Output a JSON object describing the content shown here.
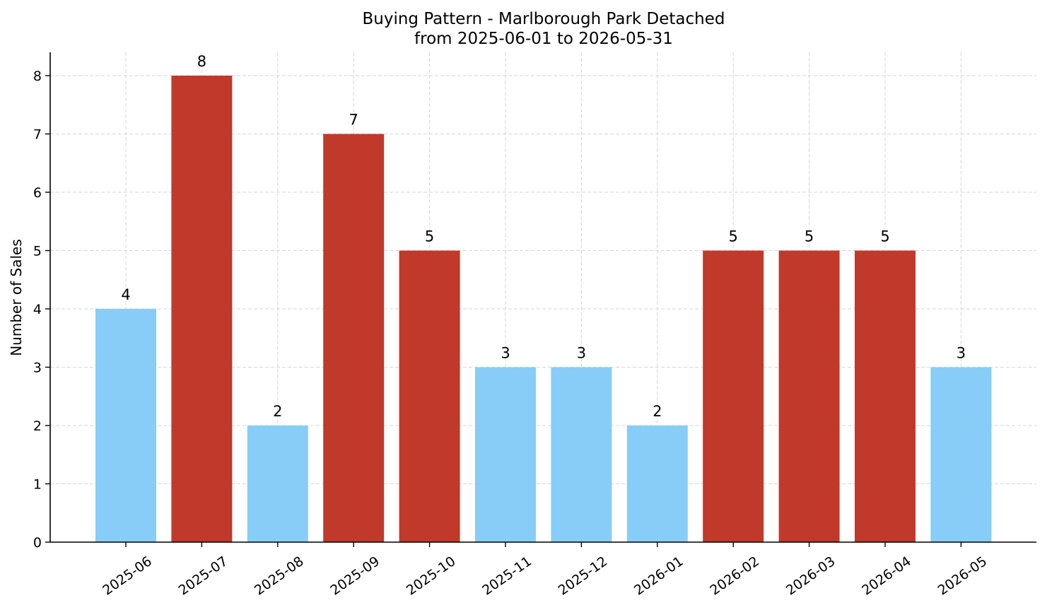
{
  "chart_data": {
    "type": "bar",
    "title": "Buying Pattern - Marlborough Park Detached",
    "subtitle": "from 2025-06-01 to 2026-05-31",
    "xlabel": "",
    "ylabel": "Number of Sales",
    "categories": [
      "2025-06",
      "2025-07",
      "2025-08",
      "2025-09",
      "2025-10",
      "2025-11",
      "2025-12",
      "2026-01",
      "2026-02",
      "2026-03",
      "2026-04",
      "2026-05"
    ],
    "values": [
      4,
      8,
      2,
      7,
      5,
      3,
      3,
      2,
      5,
      5,
      5,
      3
    ],
    "highlight": [
      false,
      true,
      false,
      true,
      true,
      false,
      false,
      false,
      true,
      true,
      true,
      false
    ],
    "colors": {
      "normal": "#87cdf8",
      "highlight": "#c0392b"
    },
    "ylim": [
      0,
      8.4
    ],
    "yticks": [
      0,
      1,
      2,
      3,
      4,
      5,
      6,
      7,
      8
    ],
    "grid": true,
    "legend": "none"
  }
}
